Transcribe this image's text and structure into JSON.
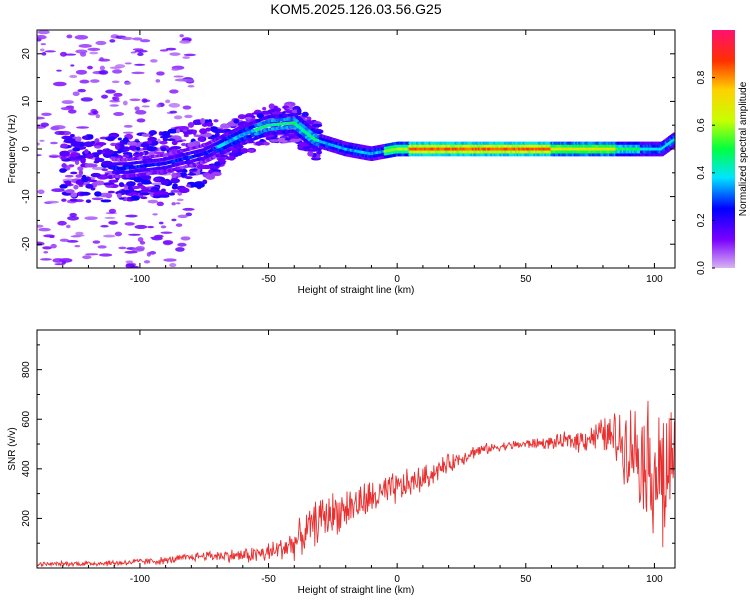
{
  "title": "KOM5.2025.126.03.56.G25",
  "chart_data": [
    {
      "type": "heatmap",
      "xlabel": "Height of straight line (km)",
      "ylabel": "Frequency (Hz)",
      "xlim": [
        -140,
        108
      ],
      "ylim": [
        -25,
        25
      ],
      "xticks": [
        -100,
        -50,
        0,
        50,
        100
      ],
      "yticks": [
        -20,
        -10,
        0,
        10,
        20
      ],
      "colorbar": {
        "label": "Normalized spectral amplitude",
        "range": [
          0,
          1
        ],
        "ticks": [
          0.0,
          0.2,
          0.4,
          0.6,
          0.8
        ],
        "colormap": [
          "#d8b4f0",
          "#7a00ff",
          "#0000ff",
          "#00e5ff",
          "#00ff40",
          "#c8ff00",
          "#ffd000",
          "#ff3000",
          "#ff1070"
        ]
      },
      "ridge": {
        "description_points": [
          {
            "x": -105,
            "y": -4
          },
          {
            "x": -90,
            "y": -3
          },
          {
            "x": -75,
            "y": -1
          },
          {
            "x": -60,
            "y": 3
          },
          {
            "x": -50,
            "y": 5
          },
          {
            "x": -40,
            "y": 5.5
          },
          {
            "x": -32,
            "y": 2
          },
          {
            "x": -20,
            "y": 0
          },
          {
            "x": -10,
            "y": -1
          },
          {
            "x": 0,
            "y": 0
          },
          {
            "x": 20,
            "y": 0
          },
          {
            "x": 50,
            "y": 0
          },
          {
            "x": 80,
            "y": 0
          },
          {
            "x": 95,
            "y": 0
          },
          {
            "x": 103,
            "y": 0
          },
          {
            "x": 108,
            "y": 2
          }
        ],
        "peak_amplitude_range": [
          0,
          60
        ]
      }
    },
    {
      "type": "line",
      "xlabel": "Height of straight line (km)",
      "ylabel": "SNR (v/v)",
      "xlim": [
        -140,
        108
      ],
      "ylim": [
        0,
        960
      ],
      "xticks": [
        -100,
        -50,
        0,
        50,
        100
      ],
      "yticks": [
        200,
        400,
        600,
        800
      ],
      "color": "#e83030",
      "trend": [
        {
          "x": -140,
          "y": 15
        },
        {
          "x": -110,
          "y": 20
        },
        {
          "x": -90,
          "y": 30
        },
        {
          "x": -75,
          "y": 50
        },
        {
          "x": -60,
          "y": 50
        },
        {
          "x": -50,
          "y": 60
        },
        {
          "x": -40,
          "y": 100
        },
        {
          "x": -30,
          "y": 200
        },
        {
          "x": -20,
          "y": 240
        },
        {
          "x": -10,
          "y": 280
        },
        {
          "x": 0,
          "y": 320
        },
        {
          "x": 10,
          "y": 360
        },
        {
          "x": 20,
          "y": 420
        },
        {
          "x": 30,
          "y": 470
        },
        {
          "x": 40,
          "y": 490
        },
        {
          "x": 50,
          "y": 500
        },
        {
          "x": 60,
          "y": 505
        },
        {
          "x": 70,
          "y": 515
        },
        {
          "x": 80,
          "y": 540
        },
        {
          "x": 85,
          "y": 520
        },
        {
          "x": 90,
          "y": 500
        },
        {
          "x": 95,
          "y": 460
        },
        {
          "x": 100,
          "y": 400
        },
        {
          "x": 104,
          "y": 350
        },
        {
          "x": 108,
          "y": 470
        }
      ],
      "noise": [
        {
          "x": -140,
          "a": 10
        },
        {
          "x": -80,
          "a": 20
        },
        {
          "x": -60,
          "a": 35
        },
        {
          "x": -45,
          "a": 60
        },
        {
          "x": -30,
          "a": 110
        },
        {
          "x": 0,
          "a": 80
        },
        {
          "x": 20,
          "a": 45
        },
        {
          "x": 40,
          "a": 20
        },
        {
          "x": 60,
          "a": 30
        },
        {
          "x": 80,
          "a": 80
        },
        {
          "x": 95,
          "a": 250
        },
        {
          "x": 104,
          "a": 420
        },
        {
          "x": 108,
          "a": 150
        }
      ]
    }
  ]
}
